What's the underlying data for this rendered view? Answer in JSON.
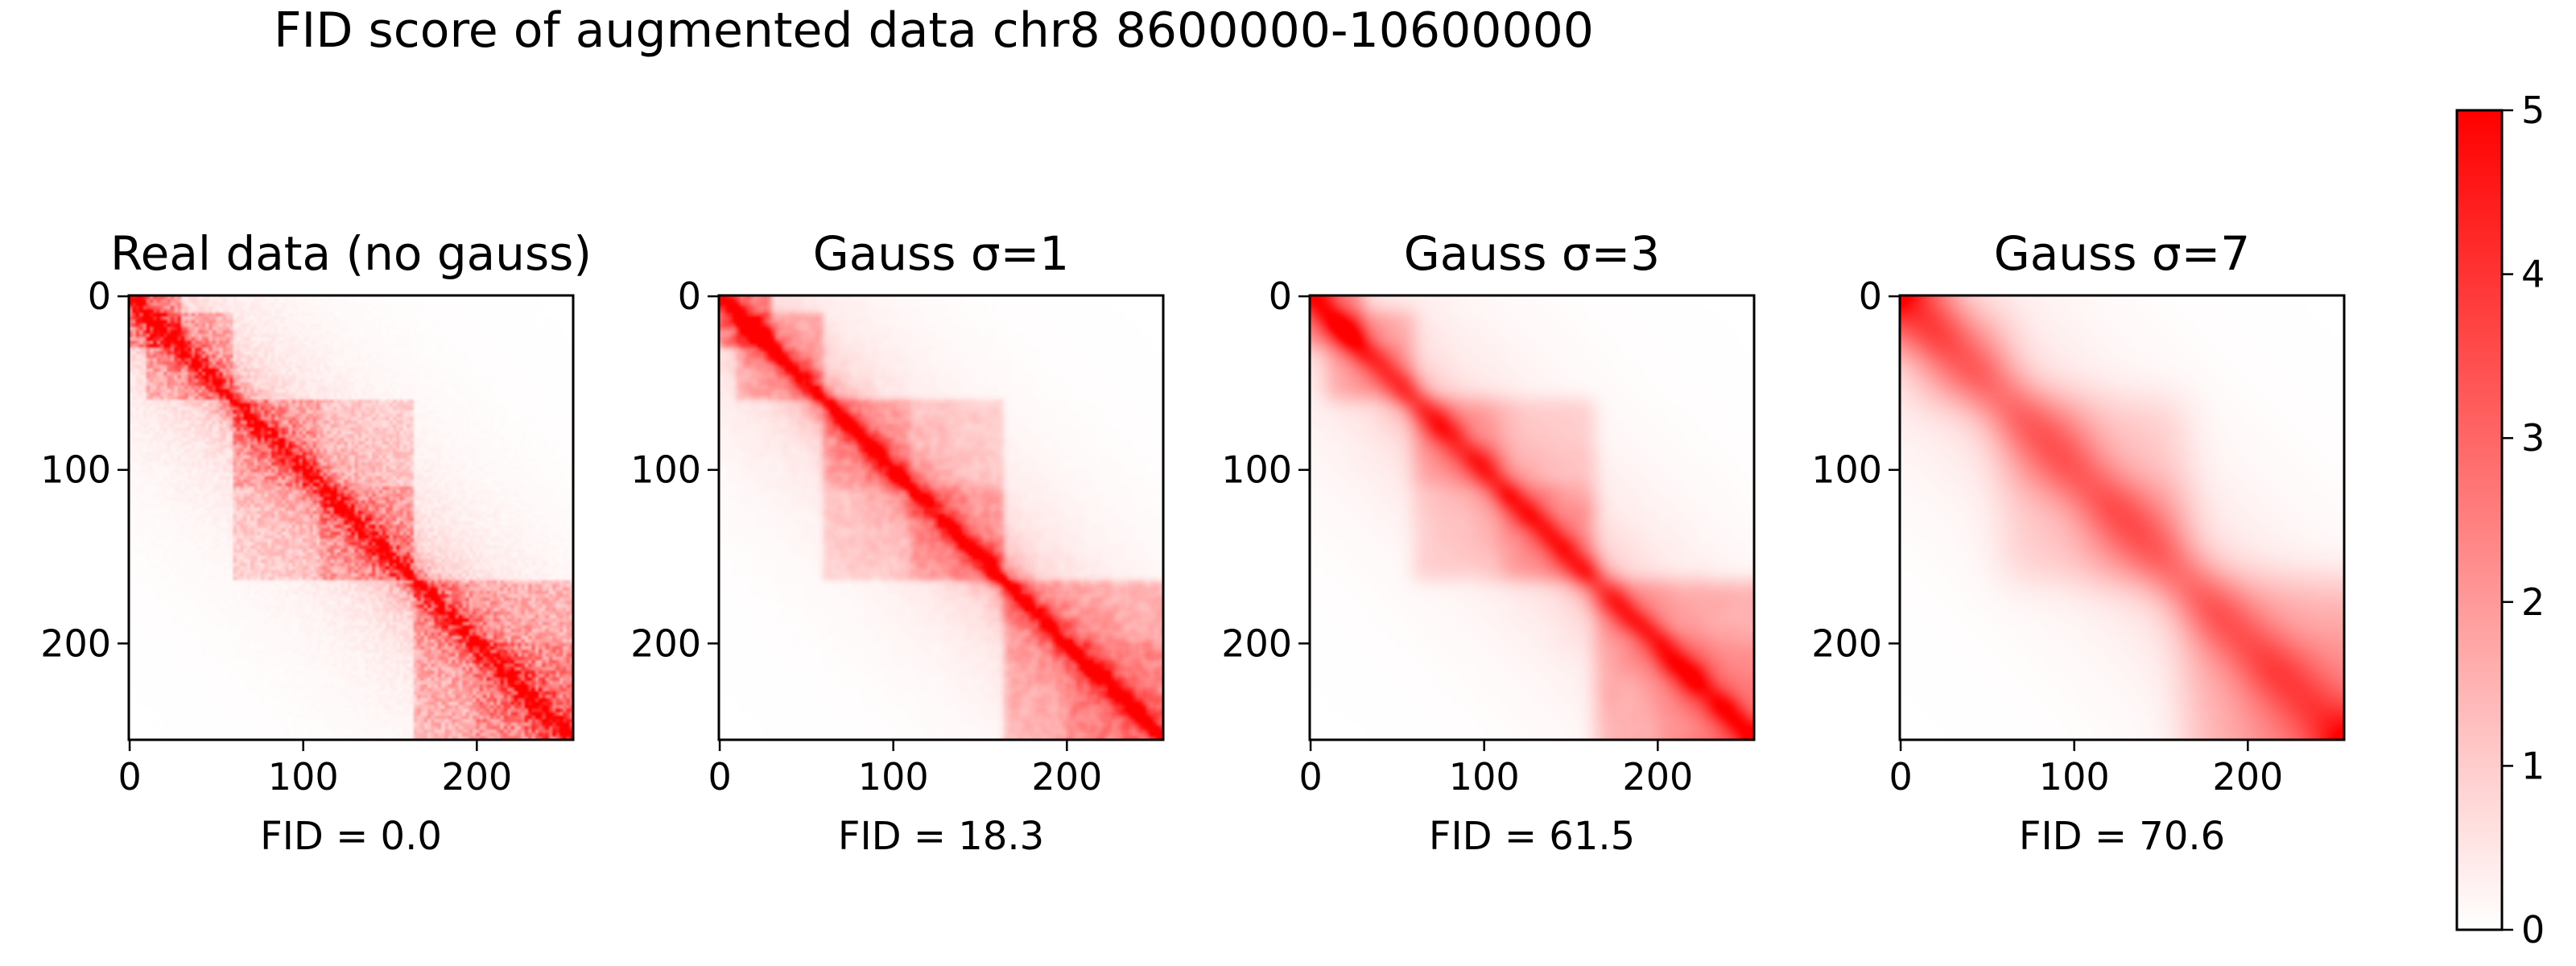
{
  "title": "FID score of augmented data chr8 8600000-10600000",
  "matrix_size": 256,
  "tick_values": [
    0,
    100,
    200
  ],
  "colors": {
    "low": "#ffffff",
    "high": "#ff0000"
  },
  "colorbar": {
    "min": 0,
    "max": 5,
    "ticks": [
      0,
      1,
      2,
      3,
      4,
      5
    ]
  },
  "chart_data": [
    {
      "type": "heatmap",
      "title": "Real data (no gauss)",
      "xlabel": "FID = 0.0",
      "gaussian_sigma": 0,
      "fid": 0.0,
      "xlim": [
        0,
        255
      ],
      "ylim": [
        0,
        255
      ],
      "xticks": [
        0,
        100,
        200
      ],
      "yticks": [
        0,
        100,
        200
      ],
      "value_range": [
        0,
        5
      ]
    },
    {
      "type": "heatmap",
      "title": "Gauss σ=1",
      "xlabel": "FID = 18.3",
      "gaussian_sigma": 1,
      "fid": 18.3,
      "xlim": [
        0,
        255
      ],
      "ylim": [
        0,
        255
      ],
      "xticks": [
        0,
        100,
        200
      ],
      "yticks": [
        0,
        100,
        200
      ],
      "value_range": [
        0,
        5
      ]
    },
    {
      "type": "heatmap",
      "title": "Gauss σ=3",
      "xlabel": "FID = 61.5",
      "gaussian_sigma": 3,
      "fid": 61.5,
      "xlim": [
        0,
        255
      ],
      "ylim": [
        0,
        255
      ],
      "xticks": [
        0,
        100,
        200
      ],
      "yticks": [
        0,
        100,
        200
      ],
      "value_range": [
        0,
        5
      ]
    },
    {
      "type": "heatmap",
      "title": "Gauss σ=7",
      "xlabel": "FID = 70.6",
      "gaussian_sigma": 7,
      "fid": 70.6,
      "xlim": [
        0,
        255
      ],
      "ylim": [
        0,
        255
      ],
      "xticks": [
        0,
        100,
        200
      ],
      "yticks": [
        0,
        100,
        200
      ],
      "value_range": [
        0,
        5
      ]
    }
  ]
}
